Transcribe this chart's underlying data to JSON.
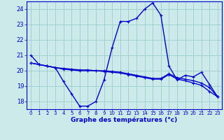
{
  "xlabel": "Graphe des températures (°c)",
  "xlim": [
    -0.5,
    23.5
  ],
  "ylim": [
    17.5,
    24.5
  ],
  "yticks": [
    18,
    19,
    20,
    21,
    22,
    23,
    24
  ],
  "xticks": [
    0,
    1,
    2,
    3,
    4,
    5,
    6,
    7,
    8,
    9,
    10,
    11,
    12,
    13,
    14,
    15,
    16,
    17,
    18,
    19,
    20,
    21,
    22,
    23
  ],
  "background_color": "#cceaea",
  "grid_color": "#99cccc",
  "line_color": "#0000cc",
  "line1_x": [
    0,
    1,
    2,
    3,
    4,
    5,
    6,
    7,
    8,
    9,
    10,
    11,
    12,
    13,
    14,
    15,
    16,
    17,
    18,
    19,
    20,
    21,
    22,
    23
  ],
  "line1_y": [
    21.0,
    20.4,
    20.3,
    20.2,
    19.3,
    18.5,
    17.7,
    17.7,
    18.0,
    19.4,
    21.5,
    23.2,
    23.2,
    23.4,
    24.0,
    24.4,
    23.6,
    20.3,
    19.4,
    19.7,
    19.6,
    19.9,
    19.1,
    18.3
  ],
  "line2_x": [
    0,
    1,
    2,
    3,
    4,
    5,
    6,
    7,
    8,
    9,
    10,
    11,
    12,
    13,
    14,
    15,
    16,
    17,
    18,
    19,
    20,
    21,
    22,
    23
  ],
  "line2_y": [
    20.5,
    20.4,
    20.3,
    20.2,
    20.1,
    20.05,
    20.0,
    20.0,
    20.0,
    19.95,
    19.9,
    19.85,
    19.75,
    19.65,
    19.55,
    19.45,
    19.45,
    19.75,
    19.45,
    19.35,
    19.2,
    19.05,
    18.65,
    18.3
  ],
  "line3_x": [
    0,
    1,
    2,
    3,
    4,
    5,
    6,
    7,
    8,
    9,
    10,
    11,
    12,
    13,
    14,
    15,
    16,
    17,
    18,
    19,
    20,
    21,
    22,
    23
  ],
  "line3_y": [
    20.5,
    20.4,
    20.3,
    20.2,
    20.15,
    20.1,
    20.05,
    20.05,
    20.0,
    20.0,
    19.95,
    19.9,
    19.8,
    19.7,
    19.6,
    19.5,
    19.5,
    19.8,
    19.55,
    19.45,
    19.35,
    19.2,
    18.9,
    18.3
  ]
}
